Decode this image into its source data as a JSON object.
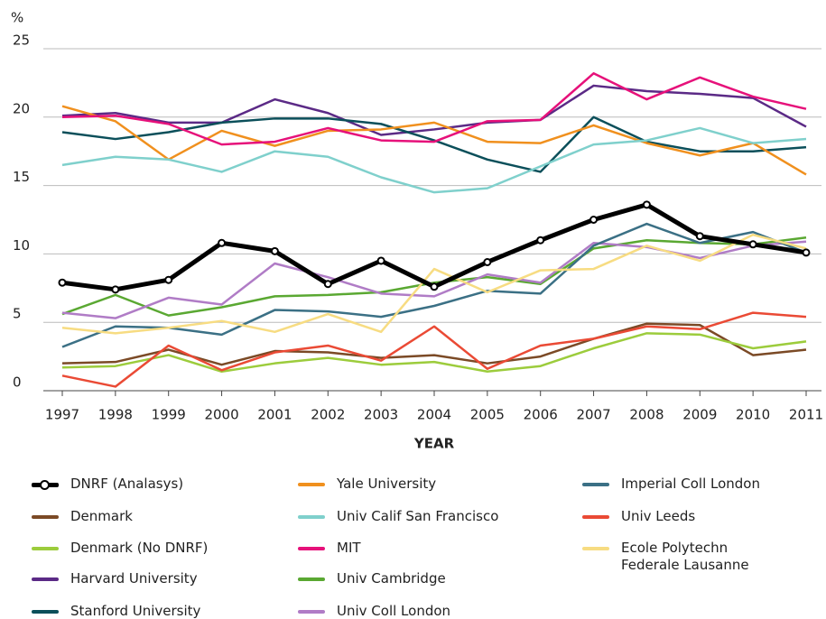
{
  "chart_data": {
    "type": "line",
    "ylabel": "%",
    "xlabel": "YEAR",
    "x": [
      1997,
      1998,
      1999,
      2000,
      2001,
      2002,
      2003,
      2004,
      2005,
      2006,
      2007,
      2008,
      2009,
      2010,
      2011
    ],
    "xlim": [
      1997,
      2011
    ],
    "xticks": [
      1997,
      1998,
      1999,
      2000,
      2001,
      2002,
      2003,
      2004,
      2005,
      2006,
      2007,
      2008,
      2009,
      2010,
      2011
    ],
    "ylim": [
      0,
      25
    ],
    "yticks": [
      0,
      5,
      10,
      15,
      20,
      25
    ],
    "grid": true,
    "series": [
      {
        "name": "DNRF (Analasys)",
        "color": "#000000",
        "marker": "circle",
        "values": [
          7.9,
          7.4,
          8.1,
          10.8,
          10.2,
          7.8,
          9.5,
          7.6,
          9.4,
          11.0,
          12.5,
          13.6,
          11.3,
          10.7,
          10.1
        ]
      },
      {
        "name": "Denmark",
        "color": "#7b4a26",
        "values": [
          2.0,
          2.1,
          3.0,
          1.9,
          2.9,
          2.8,
          2.4,
          2.6,
          2.0,
          2.5,
          3.8,
          4.9,
          4.8,
          2.6,
          3.0
        ]
      },
      {
        "name": "Denmark (No DNRF)",
        "color": "#9ccc3c",
        "values": [
          1.7,
          1.8,
          2.6,
          1.4,
          2.0,
          2.4,
          1.9,
          2.1,
          1.4,
          1.8,
          3.1,
          4.2,
          4.1,
          3.1,
          3.6
        ]
      },
      {
        "name": "Harvard University",
        "color": "#5b2a86",
        "values": [
          20.1,
          20.3,
          19.6,
          19.6,
          21.3,
          20.3,
          18.7,
          19.1,
          19.6,
          19.8,
          22.3,
          21.9,
          21.7,
          21.4,
          19.3
        ]
      },
      {
        "name": "Stanford University",
        "color": "#0b4f5a",
        "values": [
          18.9,
          18.4,
          18.9,
          19.6,
          19.9,
          19.9,
          19.5,
          18.3,
          16.9,
          16.0,
          20.0,
          18.2,
          17.5,
          17.5,
          17.8
        ]
      },
      {
        "name": "Yale University",
        "color": "#f0901e",
        "values": [
          20.8,
          19.7,
          16.9,
          19.0,
          17.9,
          19.0,
          19.1,
          19.6,
          18.2,
          18.1,
          19.4,
          18.1,
          17.2,
          18.1,
          15.8
        ]
      },
      {
        "name": "Univ Calif San Francisco",
        "color": "#7fd0cc",
        "values": [
          16.5,
          17.1,
          16.9,
          16.0,
          17.5,
          17.1,
          15.6,
          14.5,
          14.8,
          16.4,
          18.0,
          18.3,
          19.2,
          18.1,
          18.4
        ]
      },
      {
        "name": "MIT",
        "color": "#e6117a",
        "values": [
          20.0,
          20.1,
          19.5,
          18.0,
          18.2,
          19.2,
          18.3,
          18.2,
          19.7,
          19.8,
          23.2,
          21.3,
          22.9,
          21.5,
          20.6
        ]
      },
      {
        "name": "Univ Cambridge",
        "color": "#5aa832",
        "values": [
          5.6,
          7.0,
          5.5,
          6.1,
          6.9,
          7.0,
          7.2,
          7.9,
          8.3,
          7.8,
          10.4,
          11.0,
          10.8,
          10.7,
          11.2
        ]
      },
      {
        "name": "Univ Coll London",
        "color": "#b07cc6",
        "values": [
          5.7,
          5.3,
          6.8,
          6.3,
          9.3,
          8.3,
          7.1,
          6.9,
          8.5,
          7.9,
          10.8,
          10.5,
          9.7,
          10.6,
          10.9
        ]
      },
      {
        "name": "Imperial Coll London",
        "color": "#3b7085",
        "values": [
          3.2,
          4.7,
          4.6,
          4.1,
          5.9,
          5.8,
          5.4,
          6.2,
          7.3,
          7.1,
          10.6,
          12.2,
          10.8,
          11.6,
          10.1
        ]
      },
      {
        "name": "Univ Leeds",
        "color": "#ea4a35",
        "values": [
          1.1,
          0.3,
          3.3,
          1.5,
          2.8,
          3.3,
          2.2,
          4.7,
          1.6,
          3.3,
          3.8,
          4.7,
          4.5,
          5.7,
          5.4
        ]
      },
      {
        "name": "Ecole Polytechn Federale Lausanne",
        "color": "#f7dc82",
        "values": [
          4.6,
          4.2,
          4.6,
          5.1,
          4.3,
          5.6,
          4.3,
          8.9,
          7.2,
          8.8,
          8.9,
          10.6,
          9.5,
          11.4,
          10.4
        ]
      }
    ]
  }
}
